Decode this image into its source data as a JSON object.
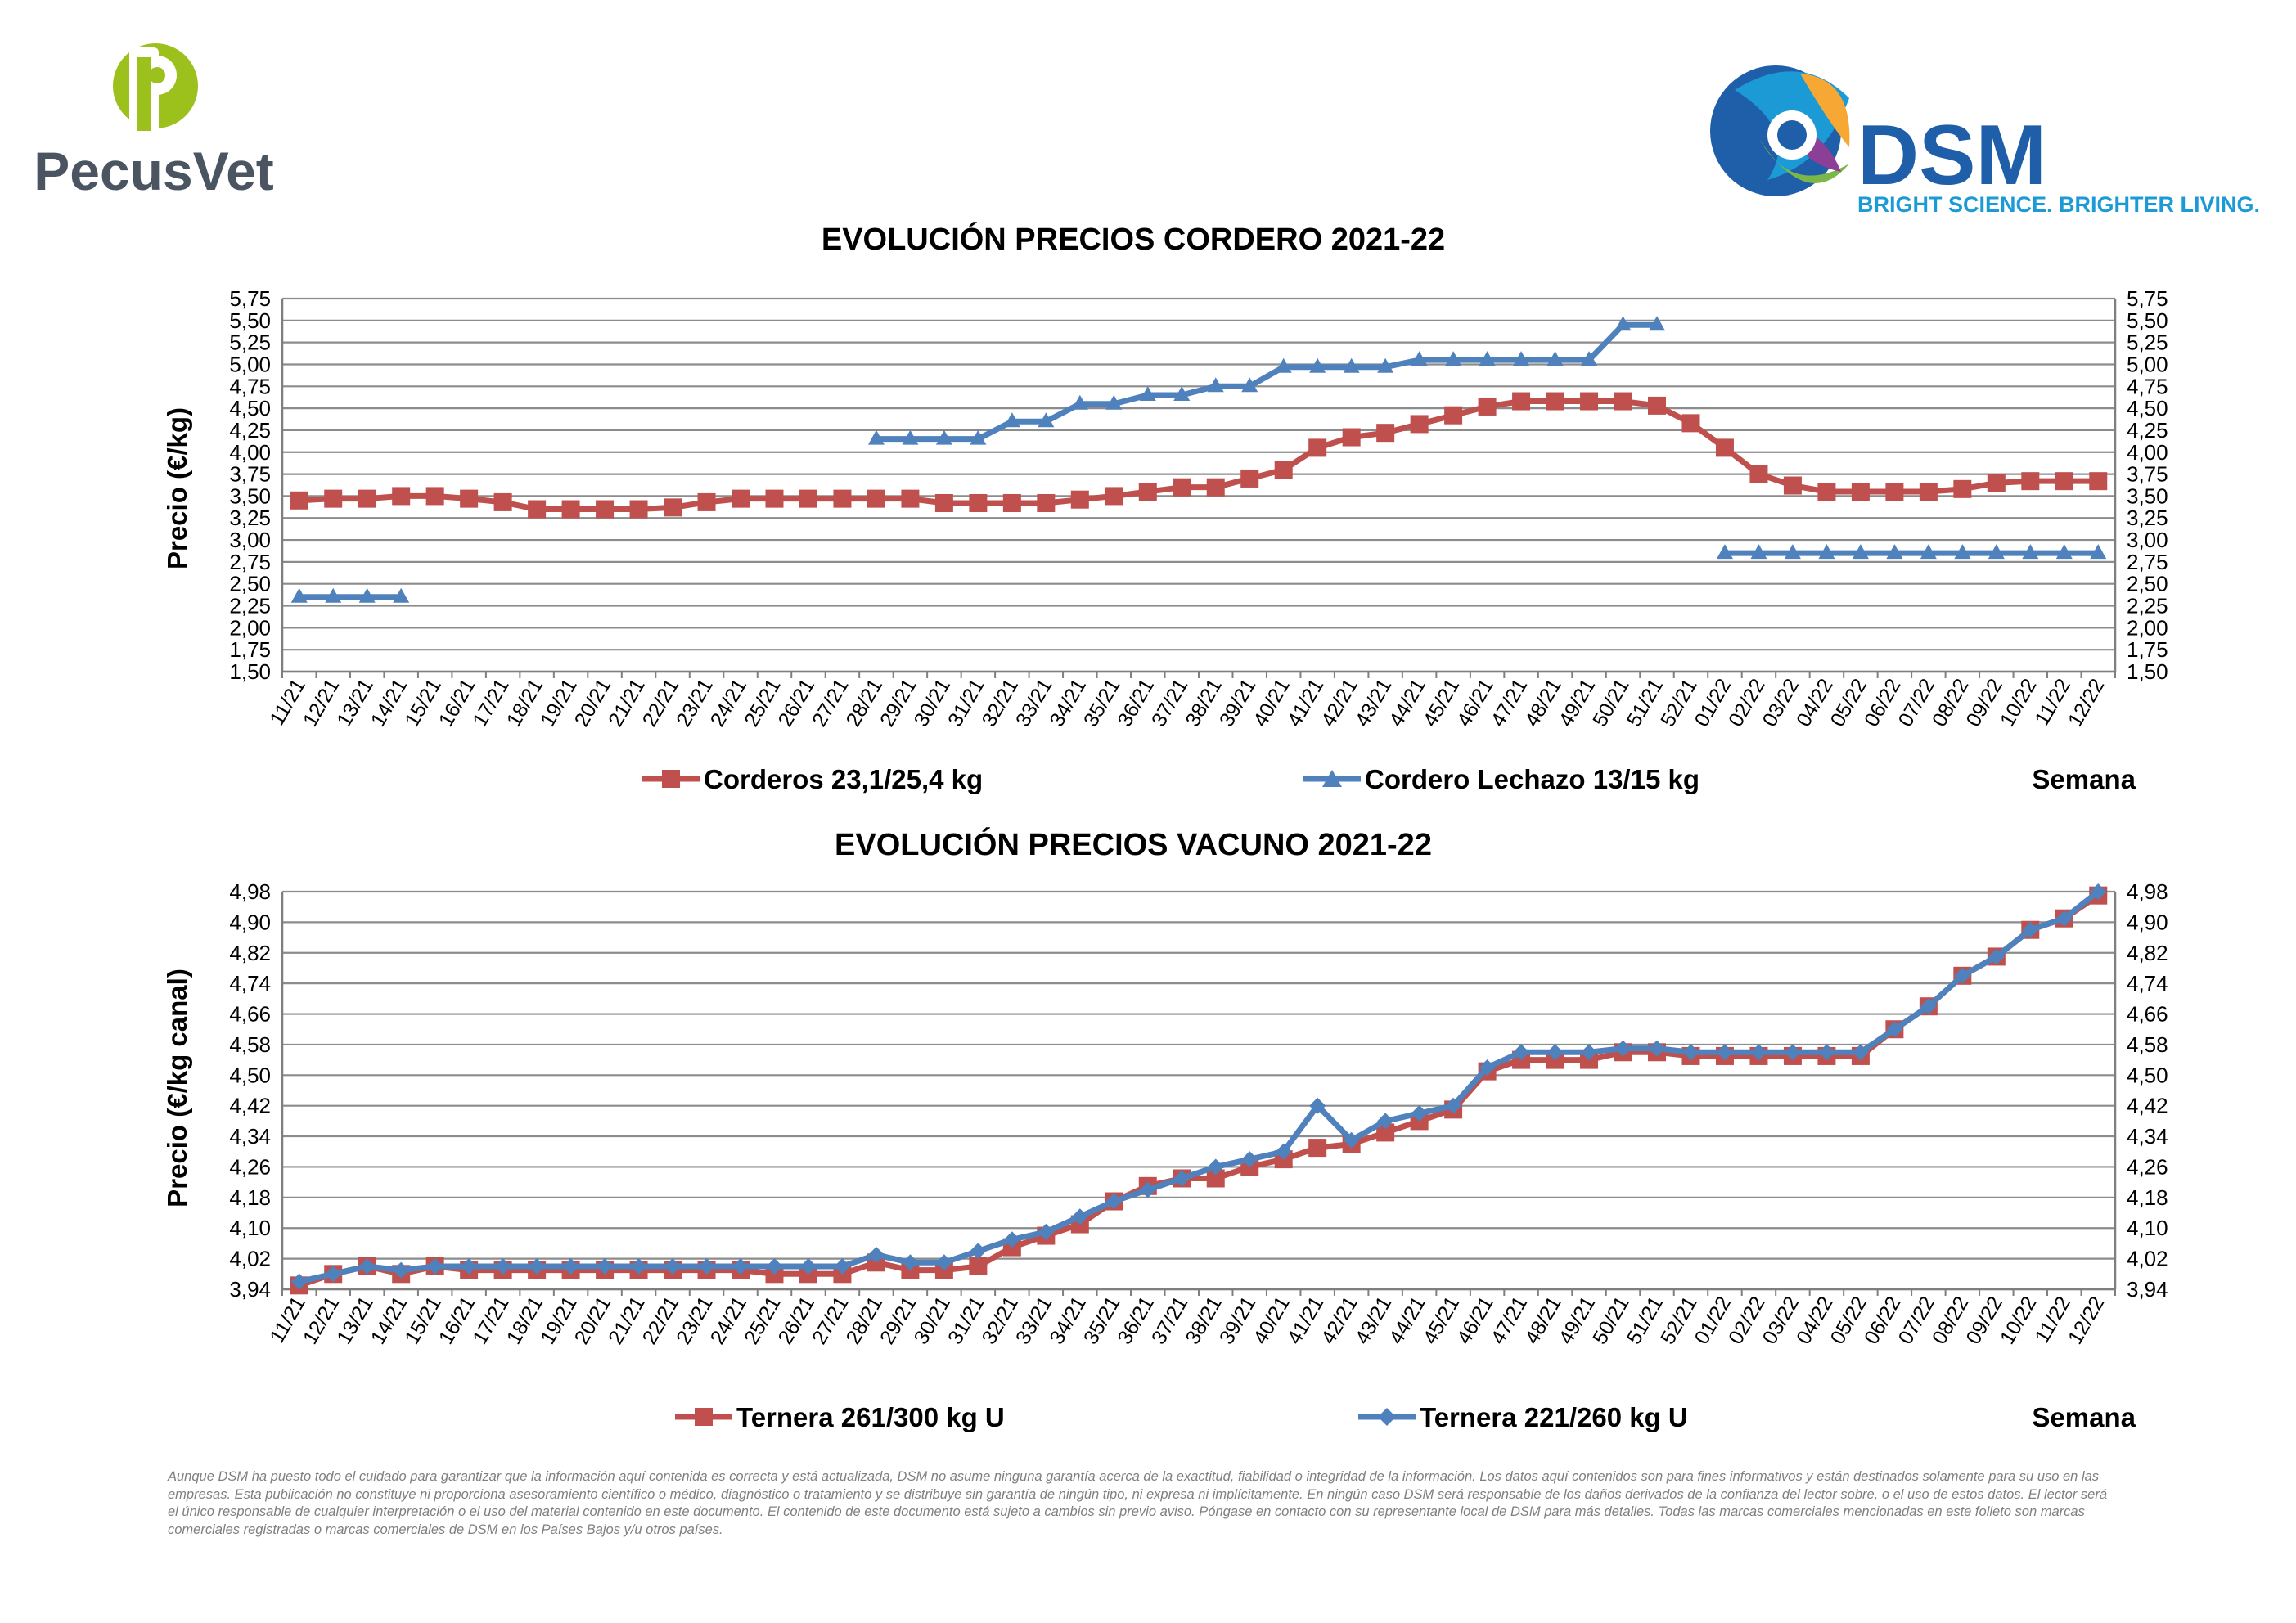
{
  "branding": {
    "pecusvet_name": "PecusVet",
    "dsm_name": "DSM",
    "dsm_tagline": "BRIGHT SCIENCE. BRIGHTER LIVING.",
    "colors": {
      "pecus_green": "#9cc11c",
      "pecus_gray": "#4a5561",
      "dsm_blue": "#1f5ea8",
      "dsm_tagline": "#1c9ad6"
    }
  },
  "x_axis_label": "Semana",
  "weeks": [
    "11/21",
    "12/21",
    "13/21",
    "14/21",
    "15/21",
    "16/21",
    "17/21",
    "18/21",
    "19/21",
    "20/21",
    "21/21",
    "22/21",
    "23/21",
    "24/21",
    "25/21",
    "26/21",
    "27/21",
    "28/21",
    "29/21",
    "30/21",
    "31/21",
    "32/21",
    "33/21",
    "34/21",
    "35/21",
    "36/21",
    "37/21",
    "38/21",
    "39/21",
    "40/21",
    "41/21",
    "42/21",
    "43/21",
    "44/21",
    "45/21",
    "46/21",
    "47/21",
    "48/21",
    "49/21",
    "50/21",
    "51/21",
    "52/21",
    "01/22",
    "02/22",
    "03/22",
    "04/22",
    "05/22",
    "06/22",
    "07/22",
    "08/22",
    "09/22",
    "10/22",
    "11/22",
    "12/22"
  ],
  "chart_data": [
    {
      "type": "line",
      "title": "EVOLUCIÓN PRECIOS CORDERO 2021-22",
      "ylabel": "Precio (€/kg)",
      "xlabel": "Semana",
      "ylim": [
        1.5,
        5.75
      ],
      "yticks": [
        "5,75",
        "5,50",
        "5,25",
        "5,00",
        "4,75",
        "4,50",
        "4,25",
        "4,00",
        "3,75",
        "3,50",
        "3,25",
        "3,00",
        "2,75",
        "2,50",
        "2,25",
        "2,00",
        "1,75",
        "1,50"
      ],
      "grid": true,
      "legend_position": "bottom",
      "series": [
        {
          "name": "Corderos 23,1/25,4 kg",
          "color": "#c0504d",
          "marker": "square",
          "values": [
            3.45,
            3.47,
            3.47,
            3.5,
            3.5,
            3.47,
            3.43,
            3.35,
            3.35,
            3.35,
            3.35,
            3.37,
            3.43,
            3.47,
            3.47,
            3.47,
            3.47,
            3.47,
            3.47,
            3.42,
            3.42,
            3.42,
            3.42,
            3.46,
            3.5,
            3.55,
            3.6,
            3.6,
            3.7,
            3.8,
            4.05,
            4.17,
            4.22,
            4.32,
            4.42,
            4.52,
            4.58,
            4.58,
            4.58,
            4.58,
            4.53,
            4.33,
            4.05,
            3.75,
            3.62,
            3.55,
            3.55,
            3.55,
            3.55,
            3.58,
            3.65,
            3.67,
            3.67,
            3.67
          ]
        },
        {
          "name": "Cordero Lechazo 13/15 kg",
          "color": "#4f81bd",
          "marker": "triangle",
          "values": [
            2.35,
            2.35,
            2.35,
            2.35,
            null,
            null,
            null,
            null,
            null,
            null,
            null,
            null,
            null,
            null,
            null,
            null,
            null,
            4.15,
            4.15,
            4.15,
            4.15,
            4.35,
            4.35,
            4.55,
            4.55,
            4.65,
            4.65,
            4.75,
            4.75,
            4.97,
            4.97,
            4.97,
            4.97,
            5.05,
            5.05,
            5.05,
            5.05,
            5.05,
            5.05,
            5.45,
            5.45,
            null,
            2.85,
            2.85,
            2.85,
            2.85,
            2.85,
            2.85,
            2.85,
            2.85,
            2.85,
            2.85,
            2.85,
            2.85
          ]
        }
      ]
    },
    {
      "type": "line",
      "title": "EVOLUCIÓN PRECIOS VACUNO 2021-22",
      "ylabel": "Precio (€/kg canal)",
      "xlabel": "Semana",
      "ylim": [
        3.94,
        4.98
      ],
      "yticks": [
        "4,98",
        "4,90",
        "4,82",
        "4,74",
        "4,66",
        "4,58",
        "4,50",
        "4,42",
        "4,34",
        "4,26",
        "4,18",
        "4,10",
        "4,02",
        "3,94"
      ],
      "grid": true,
      "legend_position": "bottom",
      "series": [
        {
          "name": "Ternera 261/300 kg U",
          "color": "#c0504d",
          "marker": "square",
          "values": [
            3.95,
            3.98,
            4.0,
            3.98,
            4.0,
            3.99,
            3.99,
            3.99,
            3.99,
            3.99,
            3.99,
            3.99,
            3.99,
            3.99,
            3.98,
            3.98,
            3.98,
            4.01,
            3.99,
            3.99,
            4.0,
            4.05,
            4.08,
            4.11,
            4.17,
            4.21,
            4.23,
            4.23,
            4.26,
            4.28,
            4.31,
            4.32,
            4.35,
            4.38,
            4.41,
            4.51,
            4.54,
            4.54,
            4.54,
            4.56,
            4.56,
            4.55,
            4.55,
            4.55,
            4.55,
            4.55,
            4.55,
            4.62,
            4.68,
            4.76,
            4.81,
            4.88,
            4.91,
            4.97
          ]
        },
        {
          "name": "Ternera 221/260 kg U",
          "color": "#4f81bd",
          "marker": "diamond",
          "values": [
            3.96,
            3.98,
            4.0,
            3.99,
            4.0,
            4.0,
            4.0,
            4.0,
            4.0,
            4.0,
            4.0,
            4.0,
            4.0,
            4.0,
            4.0,
            4.0,
            4.0,
            4.03,
            4.01,
            4.01,
            4.04,
            4.07,
            4.09,
            4.13,
            4.17,
            4.2,
            4.23,
            4.26,
            4.28,
            4.3,
            4.42,
            4.33,
            4.38,
            4.4,
            4.42,
            4.52,
            4.56,
            4.56,
            4.56,
            4.57,
            4.57,
            4.56,
            4.56,
            4.56,
            4.56,
            4.56,
            4.56,
            4.62,
            4.68,
            4.76,
            4.81,
            4.88,
            4.91,
            4.98
          ]
        }
      ]
    }
  ],
  "disclaimer": "Aunque DSM ha puesto todo el cuidado para garantizar que la información aquí contenida es correcta y está actualizada, DSM no asume ninguna garantía acerca de la exactitud, fiabilidad o integridad de la información. Los datos aquí contenidos son para fines informativos y están destinados solamente para su uso en las empresas. Esta publicación no constituye ni proporciona asesoramiento científico o médico, diagnóstico o tratamiento y se distribuye sin garantía de ningún tipo, ni expresa ni implícitamente. En ningún caso DSM será responsable de los daños derivados de la confianza del lector sobre, o el uso de estos datos. El lector será el único responsable de cualquier interpretación o el uso del material contenido en este documento. El contenido de este documento está sujeto a cambios sin previo aviso. Póngase en contacto con su representante local de DSM para más detalles. Todas las marcas comerciales mencionadas en este folleto son marcas comerciales registradas o marcas comerciales de DSM en los Países Bajos y/u otros países."
}
